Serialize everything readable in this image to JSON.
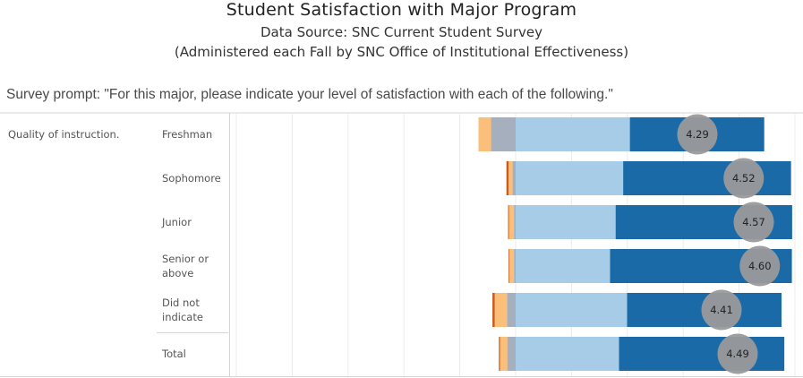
{
  "chart_data": {
    "type": "bar",
    "subtype": "diverging-stacked-bar",
    "title": "Student Satisfaction with Major Program",
    "subtitle_lines": [
      "Data Source:  SNC Current Student Survey",
      "(Administered each Fall by SNC Office of Institutional Effectiveness)"
    ],
    "prompt": "Survey prompt:  \"For this major, please indicate your level of satisfaction with each of the following.\"",
    "group": "Quality of instruction.",
    "categories": [
      "Freshman",
      "Sophomore",
      "Junior",
      "Senior or above",
      "Did not indicate",
      "Total"
    ],
    "category_lines": [
      [
        "Freshman"
      ],
      [
        "Sophomore"
      ],
      [
        "Junior"
      ],
      [
        "Senior or",
        "above"
      ],
      [
        "Did not",
        "indicate"
      ],
      [
        "Total"
      ]
    ],
    "series": [
      {
        "name": "",
        "color": "#cc5a18",
        "values": [
          0.0,
          0.8,
          0.3,
          0.3,
          0.8,
          0.4
        ]
      },
      {
        "name": "",
        "color": "#fbbf7a",
        "values": [
          4.5,
          1.4,
          1.8,
          1.6,
          4.4,
          2.6
        ]
      },
      {
        "name": "",
        "color": "#a6afbd",
        "values": [
          8.8,
          1.1,
          0.6,
          0.6,
          3.1,
          3.0
        ]
      },
      {
        "name": "",
        "color": "#a6cce8",
        "values": [
          40.9,
          38.5,
          35.8,
          33.8,
          39.9,
          37.0
        ]
      },
      {
        "name": "",
        "color": "#1a6aa8",
        "values": [
          48.1,
          60.1,
          63.2,
          65.1,
          55.3,
          59.2
        ]
      }
    ],
    "means": [
      4.29,
      4.52,
      4.57,
      4.6,
      4.41,
      4.49
    ],
    "xlim": [
      -100,
      100
    ],
    "grid": true,
    "legend": "none"
  }
}
